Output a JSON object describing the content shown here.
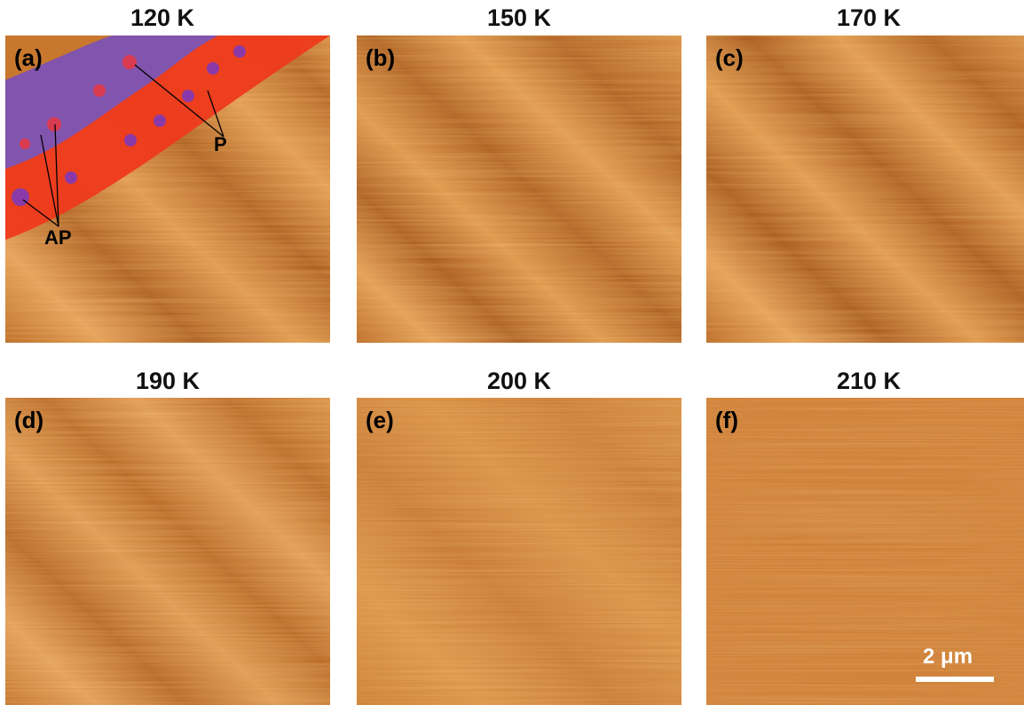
{
  "figure": {
    "panels": [
      {
        "label": "(a)",
        "title": "120 K"
      },
      {
        "label": "(b)",
        "title": "150 K"
      },
      {
        "label": "(c)",
        "title": "170 K"
      },
      {
        "label": "(d)",
        "title": "190 K"
      },
      {
        "label": "(e)",
        "title": "200 K"
      },
      {
        "label": "(f)",
        "title": "210 K"
      }
    ],
    "annotations": {
      "p": "P",
      "ap": "AP"
    },
    "scale_bar": "2 μm",
    "colors": {
      "afm_base": "#c8782e",
      "domain_blue": "#7b55b5",
      "domain_red": "#ee3a1c",
      "dot_red": "#d83a50",
      "dot_purple": "#8a3aa8"
    }
  }
}
